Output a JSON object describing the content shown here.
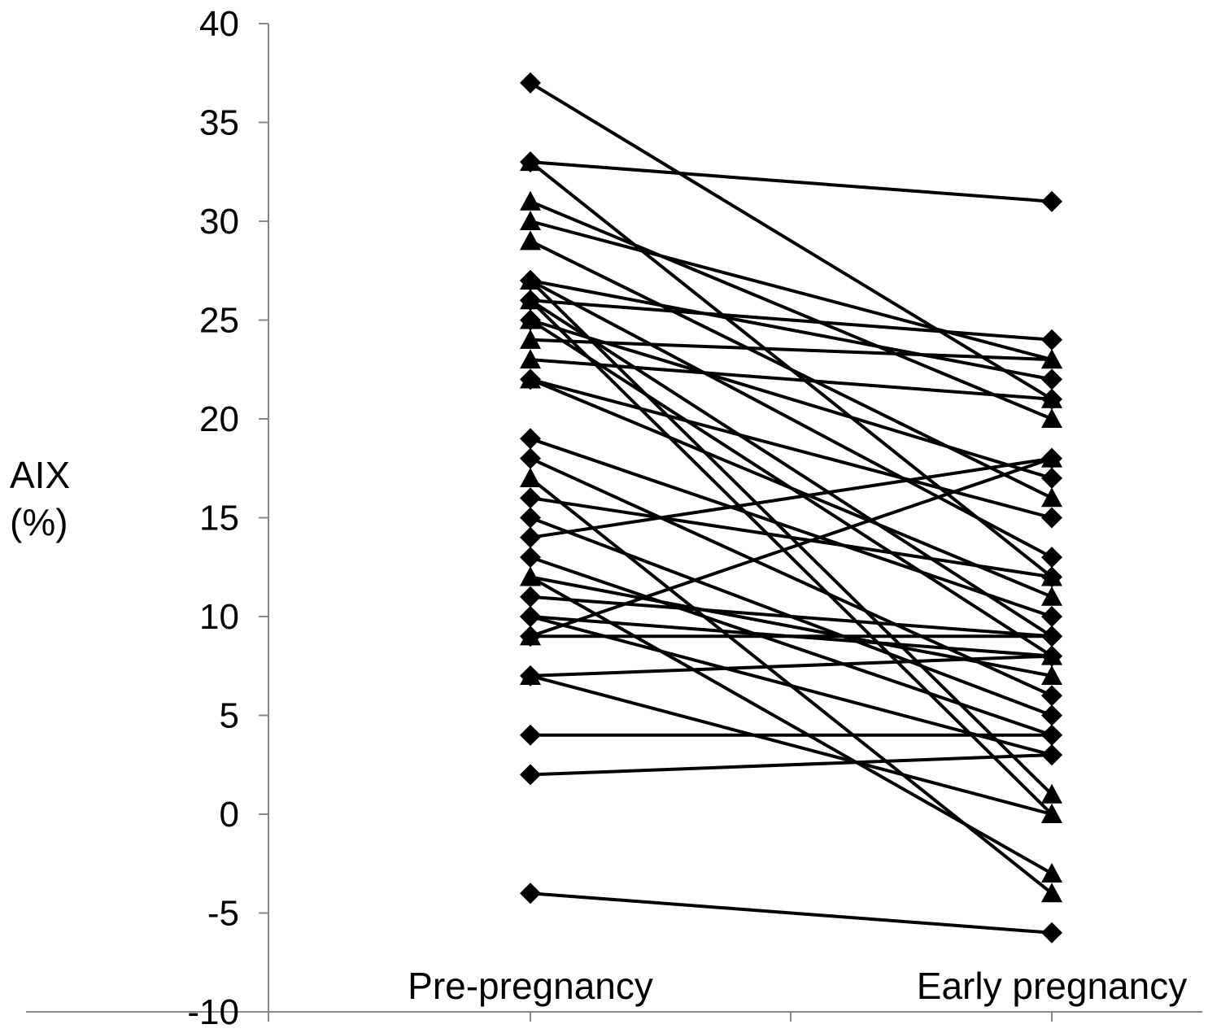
{
  "chart_data": {
    "type": "line",
    "ylabel_line1": "AIX",
    "ylabel_line2": "(%)",
    "ylim": [
      -10,
      40
    ],
    "yticks": [
      -10,
      -5,
      0,
      5,
      10,
      15,
      20,
      25,
      30,
      35,
      40
    ],
    "categories": [
      "Pre-pregnancy",
      "Early pregnancy"
    ],
    "grid": false,
    "legend": "none",
    "line_color": "#000000",
    "marker_color": "#000000",
    "pairs": [
      {
        "pre": 37,
        "early": 21,
        "marker": "diamond"
      },
      {
        "pre": 33,
        "early": 31,
        "marker": "diamond"
      },
      {
        "pre": 33,
        "early": 12,
        "marker": "triangle"
      },
      {
        "pre": 31,
        "early": 20,
        "marker": "triangle"
      },
      {
        "pre": 30,
        "early": 23,
        "marker": "triangle"
      },
      {
        "pre": 29,
        "early": 16,
        "marker": "triangle"
      },
      {
        "pre": 27,
        "early": 22,
        "marker": "diamond"
      },
      {
        "pre": 27,
        "early": 13,
        "marker": "diamond"
      },
      {
        "pre": 27,
        "early": 1,
        "marker": "triangle"
      },
      {
        "pre": 26,
        "early": 24,
        "marker": "diamond"
      },
      {
        "pre": 26,
        "early": 9,
        "marker": "diamond"
      },
      {
        "pre": 26,
        "early": 0,
        "marker": "triangle"
      },
      {
        "pre": 25,
        "early": 17,
        "marker": "diamond"
      },
      {
        "pre": 25,
        "early": 8,
        "marker": "triangle"
      },
      {
        "pre": 24,
        "early": 23,
        "marker": "triangle"
      },
      {
        "pre": 23,
        "early": 21,
        "marker": "triangle"
      },
      {
        "pre": 22,
        "early": 15,
        "marker": "diamond"
      },
      {
        "pre": 22,
        "early": 11,
        "marker": "triangle"
      },
      {
        "pre": 19,
        "early": 10,
        "marker": "diamond"
      },
      {
        "pre": 18,
        "early": 6,
        "marker": "diamond"
      },
      {
        "pre": 17,
        "early": -4,
        "marker": "triangle"
      },
      {
        "pre": 16,
        "early": 12,
        "marker": "diamond"
      },
      {
        "pre": 15,
        "early": 5,
        "marker": "diamond"
      },
      {
        "pre": 14,
        "early": 18,
        "marker": "diamond"
      },
      {
        "pre": 13,
        "early": 4,
        "marker": "diamond"
      },
      {
        "pre": 12,
        "early": 7,
        "marker": "triangle"
      },
      {
        "pre": 12,
        "early": -3,
        "marker": "triangle"
      },
      {
        "pre": 11,
        "early": 9,
        "marker": "diamond"
      },
      {
        "pre": 10,
        "early": 8,
        "marker": "diamond"
      },
      {
        "pre": 10,
        "early": 3,
        "marker": "diamond"
      },
      {
        "pre": 9,
        "early": 18,
        "marker": "triangle"
      },
      {
        "pre": 9,
        "early": 9,
        "marker": "diamond"
      },
      {
        "pre": 7,
        "early": 8,
        "marker": "diamond"
      },
      {
        "pre": 7,
        "early": 0,
        "marker": "triangle"
      },
      {
        "pre": 4,
        "early": 4,
        "marker": "diamond"
      },
      {
        "pre": 2,
        "early": 3,
        "marker": "diamond"
      },
      {
        "pre": -4,
        "early": -6,
        "marker": "diamond"
      }
    ]
  }
}
